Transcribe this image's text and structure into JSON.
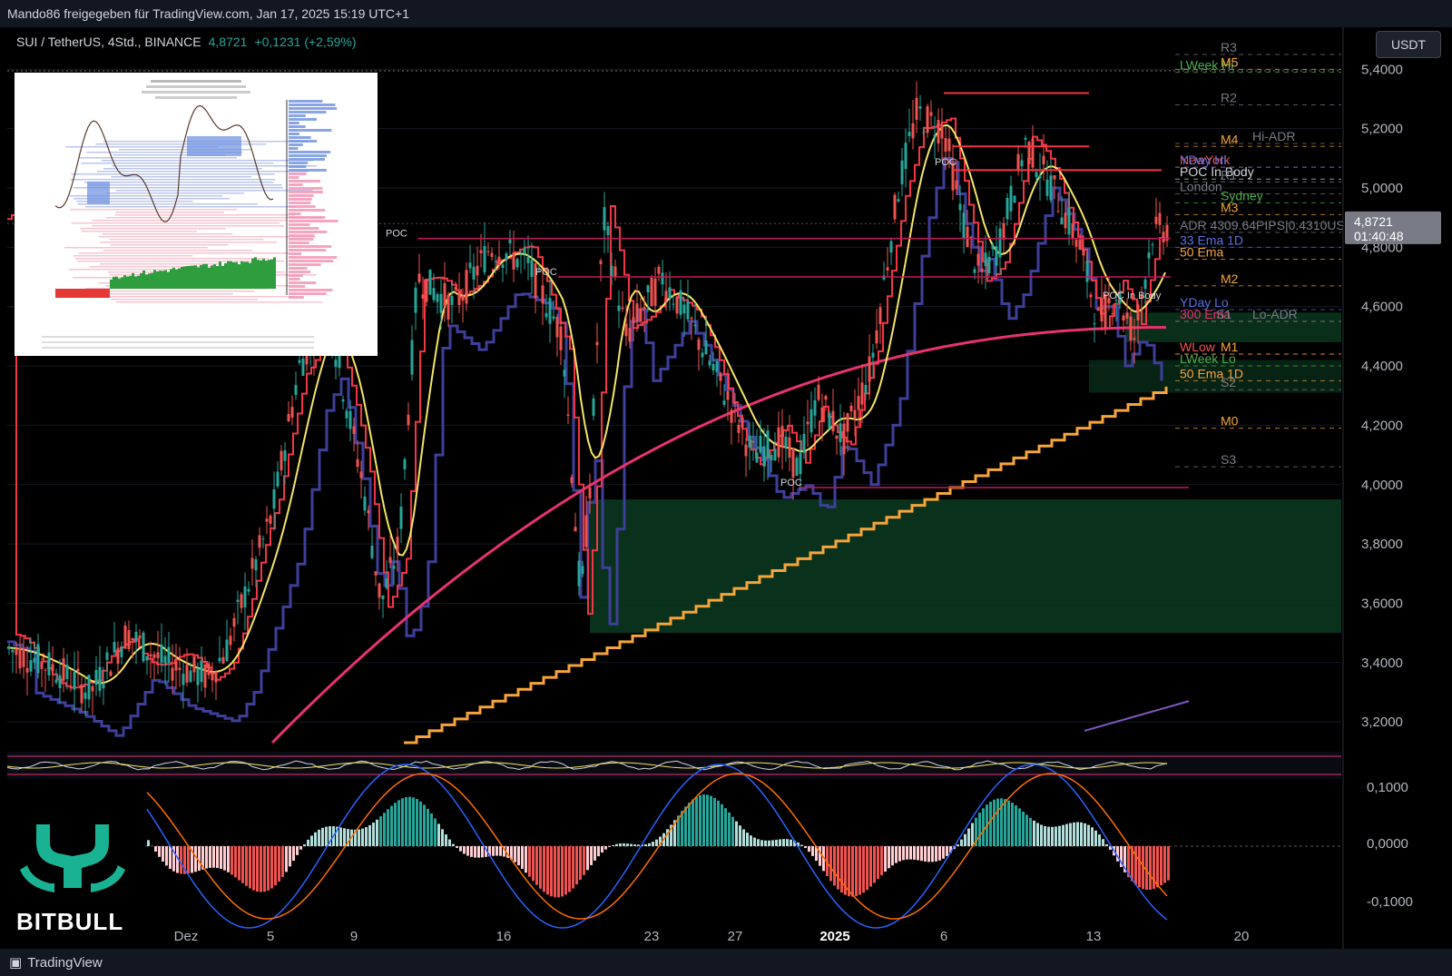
{
  "header": {
    "share_text": "Mando86 freigegeben für TradingView.com, Jan 17, 2025 15:19 UTC+1"
  },
  "symbol": {
    "name": "SUI / TetherUS, 4Std., BINANCE",
    "price": "4,8721",
    "change": "+0,1231 (+2,59%)"
  },
  "currency_button": "USDT",
  "last_price_tag": {
    "price": "4,8721",
    "countdown": "01:40:48"
  },
  "footer": {
    "brand": "TradingView"
  },
  "logo": {
    "text": "BITBULL"
  },
  "colors": {
    "up": "#26a69a",
    "down": "#ef5350",
    "ema50": "#f5e663",
    "ema200": "#e8336e",
    "step_orange": "#f7a53a",
    "step_blue": "#3e3f9a",
    "step_red": "#f23645",
    "zone_green": "#0b3a21"
  },
  "chart_data": {
    "type": "line",
    "title": "SUI / TetherUS, 4Std., BINANCE",
    "y_axis": {
      "ticks": [
        "3,2000",
        "3,4000",
        "3,6000",
        "3,8000",
        "4,0000",
        "4,2000",
        "4,4000",
        "4,6000",
        "4,8000",
        "5,0000",
        "5,2000",
        "5,4000"
      ],
      "ylim": [
        3.13,
        5.45
      ]
    },
    "x_axis": {
      "ticks": [
        "Dez",
        "5",
        "9",
        "16",
        "23",
        "27",
        "2025",
        "6",
        "13",
        "20"
      ]
    },
    "series": [
      {
        "name": "price",
        "x": [
          "Dez",
          "5",
          "9",
          "16",
          "23",
          "27",
          "2025",
          "6",
          "13",
          "20"
        ],
        "values": [
          3.45,
          3.75,
          4.05,
          4.8,
          4.5,
          4.2,
          4.1,
          5.3,
          4.6,
          4.87
        ]
      },
      {
        "name": "50 Ema",
        "values": [
          3.43,
          3.5,
          3.85,
          4.5,
          4.45,
          4.3,
          4.22,
          4.85,
          4.85,
          4.75
        ]
      },
      {
        "name": "50 Ema 1D",
        "values": [
          null,
          null,
          null,
          3.5,
          3.7,
          3.88,
          3.95,
          4.12,
          4.22,
          4.33
        ]
      }
    ],
    "levels": [
      {
        "label": "R3",
        "value": 5.45,
        "color": "#787b86"
      },
      {
        "label": "LWeek Hi",
        "value": 5.39,
        "color": "#4caf50"
      },
      {
        "label": "M5",
        "value": 5.4,
        "color": "#f7a53a"
      },
      {
        "label": "R2",
        "value": 5.28,
        "color": "#787b86"
      },
      {
        "label": "M4",
        "value": 5.14,
        "color": "#f7a53a"
      },
      {
        "label": "Hi-ADR",
        "value": 5.15,
        "color": "#787b86"
      },
      {
        "label": "NewYork",
        "value": 5.07,
        "color": "#ef5350"
      },
      {
        "label": "YDay Hi",
        "value": 5.07,
        "color": "#5b6ee1"
      },
      {
        "label": "POC In Body",
        "value": 5.03,
        "color": "#d1d4dc"
      },
      {
        "label": "R1",
        "value": 5.02,
        "color": "#787b86"
      },
      {
        "label": "London",
        "value": 4.98,
        "color": "#787b86"
      },
      {
        "label": "Sydney",
        "value": 4.95,
        "color": "#4caf50"
      },
      {
        "label": "M3",
        "value": 4.91,
        "color": "#f7a53a"
      },
      {
        "label": "ADR 4309.64PIPS|0.4310USDT",
        "value": 4.85,
        "color": "#787b86"
      },
      {
        "label": "33 Ema 1D",
        "value": 4.8,
        "color": "#5b6ee1"
      },
      {
        "label": "50 Ema",
        "value": 4.76,
        "color": "#f7a53a"
      },
      {
        "label": "M2",
        "value": 4.67,
        "color": "#f7a53a"
      },
      {
        "label": "YDay Lo",
        "value": 4.59,
        "color": "#5b6ee1"
      },
      {
        "label": "300 Ema",
        "value": 4.55,
        "color": "#e8336e"
      },
      {
        "label": "S1",
        "value": 4.55,
        "color": "#787b86"
      },
      {
        "label": "Lo-ADR",
        "value": 4.55,
        "color": "#787b86"
      },
      {
        "label": "WLow",
        "value": 4.44,
        "color": "#ef5350"
      },
      {
        "label": "M1",
        "value": 4.44,
        "color": "#f7a53a"
      },
      {
        "label": "LWeek Lo",
        "value": 4.4,
        "color": "#4caf50"
      },
      {
        "label": "50 Ema 1D",
        "value": 4.35,
        "color": "#f7a53a"
      },
      {
        "label": "S2",
        "value": 4.32,
        "color": "#787b86"
      },
      {
        "label": "M0",
        "value": 4.19,
        "color": "#f7a53a"
      },
      {
        "label": "S3",
        "value": 4.06,
        "color": "#787b86"
      }
    ],
    "poc_labels": [
      {
        "label": "POC",
        "value": 4.83
      },
      {
        "label": "POC",
        "value": 4.7
      },
      {
        "label": "POC",
        "value": 5.07
      },
      {
        "label": "POC",
        "value": 3.99
      },
      {
        "label": "POC In Body",
        "value": 4.62
      }
    ],
    "macd": {
      "ticks": [
        "0,1000",
        "0,0000",
        "-0,1000"
      ]
    }
  }
}
